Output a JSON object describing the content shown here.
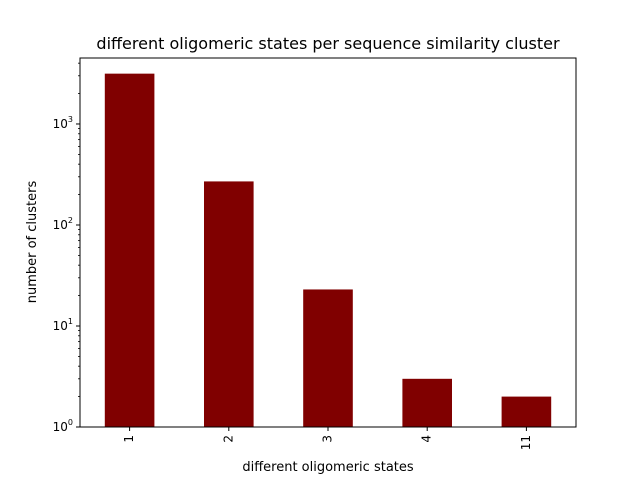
{
  "chart_data": {
    "type": "bar",
    "title": "different oligomeric states per sequence similarity cluster",
    "xlabel": "different oligomeric states",
    "ylabel": "number of clusters",
    "yscale": "log",
    "ylim": [
      1,
      4500
    ],
    "grid": false,
    "legend": "none",
    "bar_color": "#800000",
    "categories": [
      "1",
      "2",
      "3",
      "4",
      "11"
    ],
    "values": [
      3150,
      270,
      23,
      3,
      2
    ],
    "y_ticks": [
      {
        "value": 1,
        "base": "10",
        "exp": "0"
      },
      {
        "value": 10,
        "base": "10",
        "exp": "1"
      },
      {
        "value": 100,
        "base": "10",
        "exp": "2"
      },
      {
        "value": 1000,
        "base": "10",
        "exp": "3"
      }
    ]
  }
}
